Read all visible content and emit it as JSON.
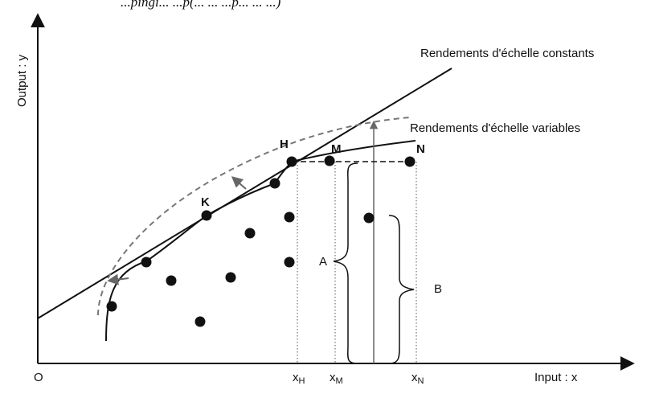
{
  "caption": "...pingi... ...p(... ... ...p... ... ...)",
  "axes": {
    "y_label": "Output : y",
    "x_label": "Input : x",
    "origin_label": "O"
  },
  "curves": {
    "crs_label": "Rendements d'échelle constants",
    "vrs_label": "Rendements d'échelle variables"
  },
  "points": {
    "H": "H",
    "M": "M",
    "N": "N",
    "K": "K"
  },
  "ticks": [
    {
      "base": "x",
      "sub": "H"
    },
    {
      "base": "x",
      "sub": "M"
    },
    {
      "base": "x",
      "sub": "N"
    }
  ],
  "braces": {
    "A": "A",
    "B": "B"
  },
  "colors": {
    "ink": "#111111",
    "dashed": "#777777",
    "arrow": "#666666"
  }
}
